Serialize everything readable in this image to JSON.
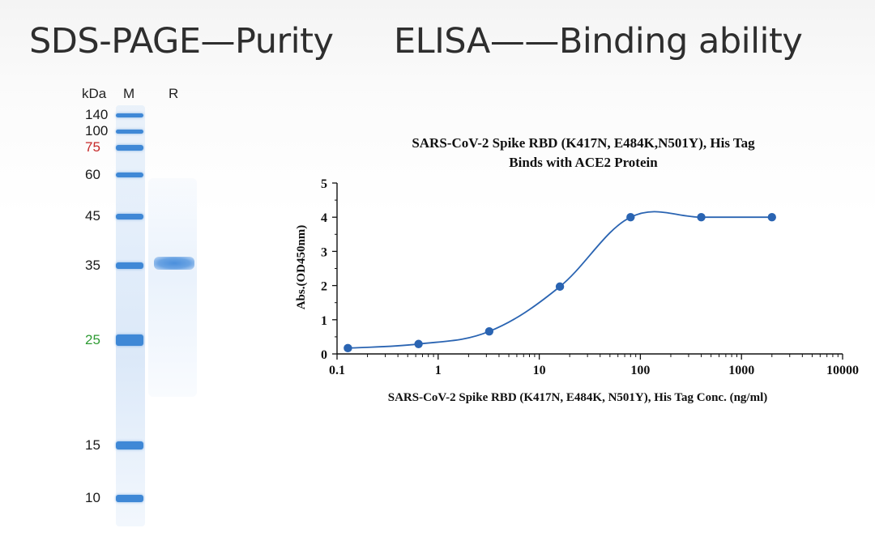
{
  "headings": {
    "left": "SDS-PAGE—Purity",
    "right": "ELISA——Binding ability"
  },
  "gel": {
    "unit_label": "kDa",
    "lanes": [
      "M",
      "R"
    ],
    "markers": [
      {
        "label": "140",
        "kda": 140,
        "color": "#1a1a1a"
      },
      {
        "label": "100",
        "kda": 100,
        "color": "#1a1a1a"
      },
      {
        "label": "75",
        "kda": 75,
        "color": "#c62828"
      },
      {
        "label": "60",
        "kda": 60,
        "color": "#1a1a1a"
      },
      {
        "label": "45",
        "kda": 45,
        "color": "#1a1a1a"
      },
      {
        "label": "35",
        "kda": 35,
        "color": "#1a1a1a"
      },
      {
        "label": "25",
        "kda": 25,
        "color": "#2e9b33"
      },
      {
        "label": "15",
        "kda": 15,
        "color": "#1a1a1a"
      },
      {
        "label": "10",
        "kda": 10,
        "color": "#1a1a1a"
      }
    ],
    "sample_band_kda": 35
  },
  "chart_data": {
    "type": "scatter",
    "title": "SARS-CoV-2 Spike RBD (K417N, E484K,N501Y), His Tag",
    "subtitle": "Binds with ACE2 Protein",
    "xlabel": "SARS-CoV-2 Spike RBD (K417N, E484K, N501Y), His Tag Conc. (ng/ml)",
    "ylabel": "Abs.(OD450nm)",
    "xscale": "log",
    "xlim": [
      0.1,
      10000
    ],
    "ylim": [
      0,
      5
    ],
    "xticks": [
      "0.1",
      "1",
      "10",
      "100",
      "1000",
      "10000"
    ],
    "yticks": [
      "0",
      "1",
      "2",
      "3",
      "4",
      "5"
    ],
    "fit_curve": true,
    "series": [
      {
        "x": [
          0.128,
          0.64,
          3.2,
          16,
          80,
          400,
          2000
        ],
        "y": [
          0.17,
          0.29,
          0.66,
          1.97,
          4.0,
          4.0,
          4.0
        ],
        "color": "#2a64b2"
      }
    ]
  }
}
